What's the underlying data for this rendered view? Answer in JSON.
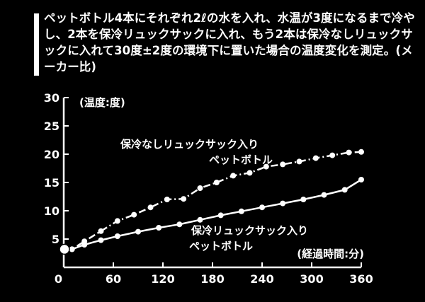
{
  "caption": "ペットボトル4本にそれぞれ2ℓの水を入れ、水温が3度になるまで冷やし、2本を保冷リュックサックに入れ、もう2本は保冷なしリュックサックに入れて30度±2度の環境下に置いた場合の温度変化を測定。(メーカー比)",
  "chart_data": {
    "type": "line",
    "xlabel": "(経過時間:分)",
    "ylabel": "(温度:度)",
    "xlim": [
      0,
      360
    ],
    "ylim": [
      0,
      30
    ],
    "xticks": [
      0,
      60,
      120,
      180,
      240,
      300,
      360
    ],
    "yticks": [
      5,
      10,
      15,
      20,
      25,
      30
    ],
    "grid": false,
    "series": [
      {
        "name_lines": [
          "保冷なしリュックサック入り",
          "ペットボトル"
        ],
        "style": "dash-dot",
        "x": [
          10,
          25,
          45,
          65,
          85,
          105,
          125,
          145,
          165,
          185,
          205,
          225,
          245,
          265,
          285,
          305,
          325,
          345,
          360
        ],
        "values": [
          3.2,
          4.6,
          6.4,
          8.2,
          9.3,
          10.6,
          12.0,
          12.1,
          14.0,
          15.0,
          16.2,
          16.7,
          17.8,
          18.2,
          18.7,
          19.3,
          19.8,
          20.3,
          20.4
        ]
      },
      {
        "name_lines": [
          "保冷リュックサック入り",
          "ペットボトル"
        ],
        "style": "solid",
        "x": [
          10,
          25,
          45,
          65,
          90,
          115,
          140,
          165,
          190,
          215,
          240,
          265,
          290,
          315,
          340,
          360
        ],
        "values": [
          3.2,
          4.0,
          4.8,
          5.5,
          6.3,
          7.0,
          7.6,
          8.4,
          9.2,
          9.9,
          10.6,
          11.3,
          12.0,
          12.8,
          13.7,
          15.5
        ]
      }
    ]
  }
}
